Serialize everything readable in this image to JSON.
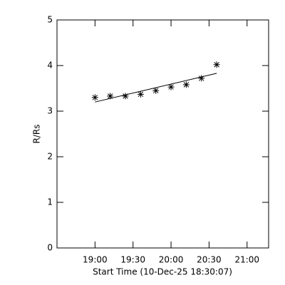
{
  "chart_data": {
    "type": "scatter",
    "xlabel": "Start Time (10-Dec-25 18:30:07)",
    "ylabel": "R/Rs",
    "x": [
      30,
      42,
      54,
      66,
      78,
      90,
      102,
      114,
      126
    ],
    "values": [
      3.3,
      3.33,
      3.33,
      3.37,
      3.45,
      3.53,
      3.58,
      3.72,
      4.02
    ],
    "color": "#000000",
    "fit": {
      "x": [
        30,
        126
      ],
      "values": [
        3.2,
        3.83
      ]
    },
    "xlim": [
      0,
      167
    ],
    "xticks": [
      {
        "value": 30,
        "label": "19:00"
      },
      {
        "value": 60,
        "label": "19:30"
      },
      {
        "value": 90,
        "label": "20:00"
      },
      {
        "value": 120,
        "label": "20:30"
      },
      {
        "value": 150,
        "label": "21:00"
      }
    ],
    "ylim": [
      0,
      5
    ],
    "yticks": [
      0,
      1,
      2,
      3,
      4,
      5
    ]
  }
}
